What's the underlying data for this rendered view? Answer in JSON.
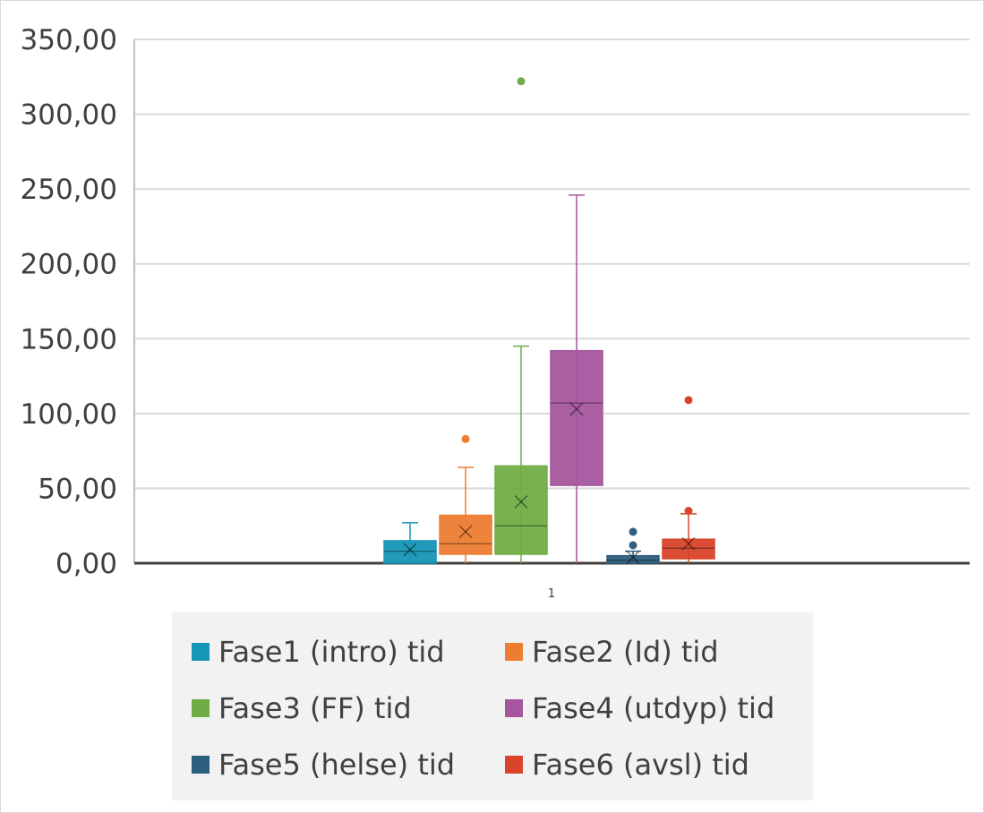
{
  "chart_data": {
    "type": "boxplot",
    "categories": [
      "1"
    ],
    "y_ticks": [
      "0,00",
      "50,00",
      "100,00",
      "150,00",
      "200,00",
      "250,00",
      "300,00",
      "350,00"
    ],
    "ylim": [
      0,
      350
    ],
    "grid": true,
    "legend_position": "bottom",
    "series": [
      {
        "name": "Fase1 (intro) tid",
        "color": "#1696b7",
        "min": 0,
        "q1": 0,
        "median": 8,
        "q3": 15,
        "max": 27,
        "mean": 9,
        "outliers": []
      },
      {
        "name": "Fase2 (Id) tid",
        "color": "#ed7d31",
        "min": 0,
        "q1": 6,
        "median": 13,
        "q3": 32,
        "max": 64,
        "mean": 21,
        "outliers": [
          83
        ]
      },
      {
        "name": "Fase3 (FF) tid",
        "color": "#70ad47",
        "min": 0,
        "q1": 6,
        "median": 25,
        "q3": 65,
        "max": 145,
        "mean": 41,
        "outliers": [
          322
        ]
      },
      {
        "name": "Fase4 (utdyp) tid",
        "color": "#a5569e",
        "min": 0,
        "q1": 52,
        "median": 107,
        "q3": 142,
        "max": 246,
        "mean": 103,
        "outliers": []
      },
      {
        "name": "Fase5 (helse) tid",
        "color": "#2f5f7f",
        "min": 0,
        "q1": 0,
        "median": 2,
        "q3": 5,
        "max": 8,
        "mean": 4,
        "outliers": [
          12,
          21
        ]
      },
      {
        "name": "Fase6 (avsl) tid",
        "color": "#d9452a",
        "min": 0,
        "q1": 3,
        "median": 10,
        "q3": 16,
        "max": 33,
        "mean": 13,
        "outliers": [
          35,
          109
        ]
      }
    ]
  }
}
